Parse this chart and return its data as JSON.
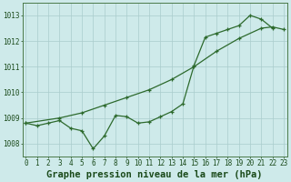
{
  "line1_x": [
    0,
    1,
    2,
    3,
    4,
    5,
    6,
    7,
    8,
    9,
    10,
    11,
    12,
    13,
    14,
    15,
    16,
    17,
    18,
    19,
    20,
    21,
    22
  ],
  "line1_y": [
    1008.8,
    1008.7,
    1008.8,
    1008.9,
    1008.6,
    1008.5,
    1007.8,
    1008.3,
    1009.1,
    1009.05,
    1008.8,
    1008.85,
    1009.05,
    1009.25,
    1009.55,
    1011.05,
    1012.15,
    1012.3,
    1012.45,
    1012.6,
    1013.0,
    1012.85,
    1012.5
  ],
  "line2_x": [
    0,
    3,
    5,
    7,
    9,
    11,
    13,
    15,
    17,
    19,
    21,
    22,
    23
  ],
  "line2_y": [
    1008.8,
    1009.0,
    1009.2,
    1009.5,
    1009.8,
    1010.1,
    1010.5,
    1011.0,
    1011.6,
    1012.1,
    1012.5,
    1012.55,
    1012.45
  ],
  "line_color": "#2d6a2d",
  "bg_color": "#ceeaea",
  "grid_color": "#aacccc",
  "title": "Graphe pression niveau de la mer (hPa)",
  "ylim_min": 1007.5,
  "ylim_max": 1013.5,
  "xlim_min": -0.3,
  "xlim_max": 23.3,
  "yticks": [
    1008,
    1009,
    1010,
    1011,
    1012,
    1013
  ],
  "xticks": [
    0,
    1,
    2,
    3,
    4,
    5,
    6,
    7,
    8,
    9,
    10,
    11,
    12,
    13,
    14,
    15,
    16,
    17,
    18,
    19,
    20,
    21,
    22,
    23
  ],
  "tick_fontsize": 5.5,
  "title_fontsize": 7.5
}
